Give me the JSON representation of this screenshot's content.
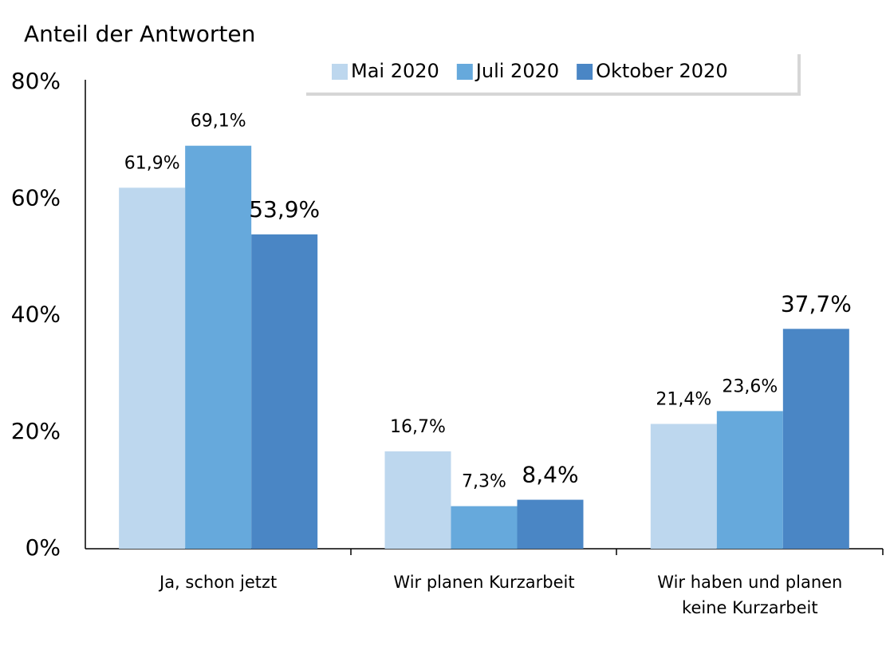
{
  "chart_data": {
    "type": "bar",
    "title": "Anteil der Antworten",
    "categories": [
      "Ja, schon jetzt",
      "Wir planen Kurzarbeit",
      "Wir haben und planen keine Kurzarbeit"
    ],
    "series": [
      {
        "name": "Mai 2020",
        "color": "#bdd7ee",
        "values": [
          61.9,
          16.7,
          21.4
        ],
        "value_labels": [
          "61,9%",
          "16,7%",
          "21,4%"
        ]
      },
      {
        "name": "Juli 2020",
        "color": "#66a9dc",
        "values": [
          69.1,
          7.3,
          23.6
        ],
        "value_labels": [
          "69,1%",
          "7,3%",
          "23,6%"
        ]
      },
      {
        "name": "Oktober 2020",
        "color": "#4a86c5",
        "values": [
          53.9,
          8.4,
          37.7
        ],
        "value_labels": [
          "53,9%",
          "8,4%",
          "37,7%"
        ]
      }
    ],
    "ylim": [
      0,
      80
    ],
    "yticks": [
      {
        "value": 0,
        "label": "0%"
      },
      {
        "value": 20,
        "label": "20%"
      },
      {
        "value": 40,
        "label": "40%"
      },
      {
        "value": 60,
        "label": "60%"
      },
      {
        "value": 80,
        "label": "80%"
      }
    ],
    "legend": "top-right"
  }
}
